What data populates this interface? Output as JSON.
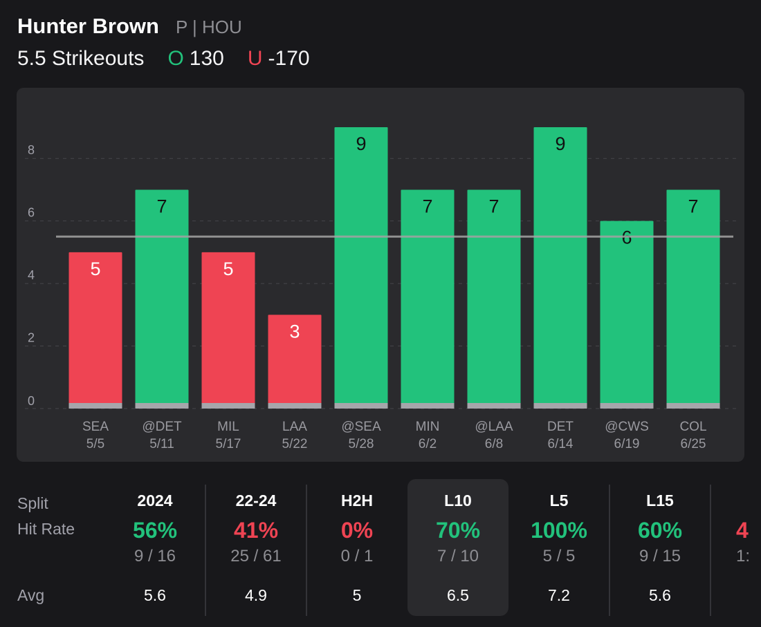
{
  "header": {
    "player_name": "Hunter Brown",
    "player_meta": "P | HOU",
    "prop_line": "5.5 Strikeouts",
    "over_symbol": "O",
    "over_odds": "130",
    "under_symbol": "U",
    "under_odds": "-170"
  },
  "colors": {
    "over": "#22c27c",
    "under": "#ef4453",
    "line": "#a3a3a3",
    "card": "#2a2a2d",
    "background": "#18181b"
  },
  "chart_data": {
    "type": "bar",
    "title": "5.5 Strikeouts",
    "threshold": 5.5,
    "ylim": [
      0,
      9
    ],
    "yticks": [
      0,
      2,
      4,
      6,
      8
    ],
    "grid": true,
    "categories": [
      {
        "opponent": "SEA",
        "date": "5/5"
      },
      {
        "opponent": "@DET",
        "date": "5/11"
      },
      {
        "opponent": "MIL",
        "date": "5/17"
      },
      {
        "opponent": "LAA",
        "date": "5/22"
      },
      {
        "opponent": "@SEA",
        "date": "5/28"
      },
      {
        "opponent": "MIN",
        "date": "6/2"
      },
      {
        "opponent": "@LAA",
        "date": "6/8"
      },
      {
        "opponent": "DET",
        "date": "6/14"
      },
      {
        "opponent": "@CWS",
        "date": "6/19"
      },
      {
        "opponent": "COL",
        "date": "6/25"
      }
    ],
    "values": [
      5,
      7,
      5,
      3,
      9,
      7,
      7,
      9,
      6,
      7
    ]
  },
  "splits": {
    "row_labels": {
      "split": "Split",
      "hit_rate": "Hit Rate",
      "avg": "Avg"
    },
    "columns": [
      {
        "label": "2024",
        "rate": "56%",
        "frac": "9 / 16",
        "avg": "5.6",
        "tone": "over"
      },
      {
        "label": "22-24",
        "rate": "41%",
        "frac": "25 / 61",
        "avg": "4.9",
        "tone": "under"
      },
      {
        "label": "H2H",
        "rate": "0%",
        "frac": "0 / 1",
        "avg": "5",
        "tone": "under"
      },
      {
        "label": "L10",
        "rate": "70%",
        "frac": "7 / 10",
        "avg": "6.5",
        "tone": "over",
        "active": true
      },
      {
        "label": "L5",
        "rate": "100%",
        "frac": "5 / 5",
        "avg": "7.2",
        "tone": "over"
      },
      {
        "label": "L15",
        "rate": "60%",
        "frac": "9 / 15",
        "avg": "5.6",
        "tone": "over"
      }
    ],
    "partial_column": {
      "rate": "4",
      "frac": "1:"
    }
  }
}
